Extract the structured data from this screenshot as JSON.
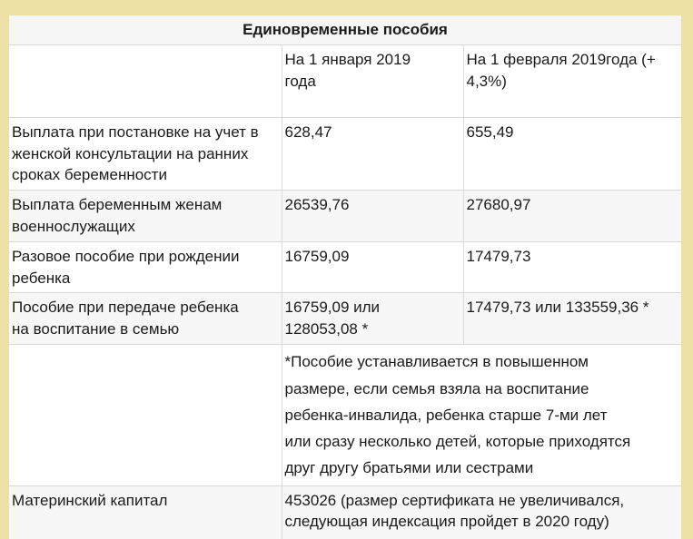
{
  "page": {
    "background_color": "#ece0a6",
    "table_background": "#ffffff",
    "stripe_color": "#f7f7f7",
    "border_color": "#d9d9d9",
    "text_color": "#1a1a1a"
  },
  "table": {
    "title": "Единовременные пособия",
    "header": {
      "label_col": "",
      "jan_col": "На 1 января 2019\nгода",
      "feb_col": "На 1 февраля 2019года (+\n4,3%)"
    },
    "rows": [
      {
        "label": "Выплата при постановке на учет в\nженской консультации на ранних\nсроках беременности",
        "jan": "628,47",
        "feb": "655,49"
      },
      {
        "label": "Выплата беременным женам\nвоеннослужащих",
        "jan": "26539,76",
        "feb": "27680,97"
      },
      {
        "label": "Разовое пособие при рождении\nребенка",
        "jan": "16759,09",
        "feb": "17479,73"
      },
      {
        "label": "Пособие при передаче ребенка\nна воспитание в семью",
        "jan": "16759,09 или\n128053,08 *",
        "feb": "17479,73 или 133559,36 *"
      },
      {
        "label": "",
        "note": "*Пособие устанавливается в повышенном\nразмере, если семья взяла на воспитание\nребенка-инвалида, ребенка старше 7-ми лет\nили сразу несколько детей, которые приходятся\nдруг другу братьями или сестрами"
      },
      {
        "label": "Материнский капитал",
        "note": "453026 (размер сертификата не увеличивался,\nследующая индексация пройдет в 2020 году)"
      }
    ]
  }
}
